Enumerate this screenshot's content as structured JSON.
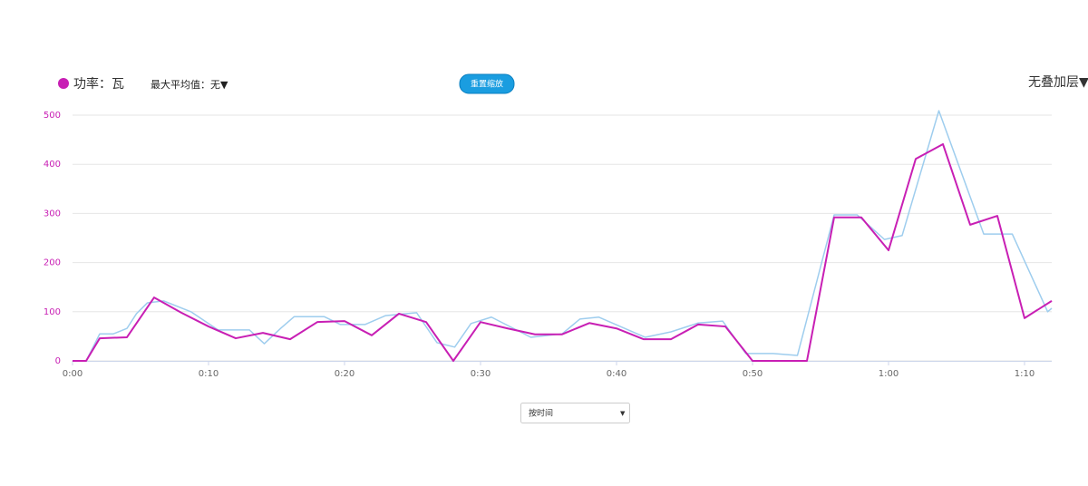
{
  "chart_data": {
    "type": "line",
    "xlim": [
      0,
      72
    ],
    "ylim": [
      0,
      500
    ],
    "yticks": [
      0,
      100,
      200,
      300,
      400,
      500
    ],
    "xticks": [
      {
        "value": 0,
        "label": "0:00"
      },
      {
        "value": 10,
        "label": "0:10"
      },
      {
        "value": 20,
        "label": "0:20"
      },
      {
        "value": 30,
        "label": "0:30"
      },
      {
        "value": 40,
        "label": "0:40"
      },
      {
        "value": 50,
        "label": "0:50"
      },
      {
        "value": 60,
        "label": "1:00"
      },
      {
        "value": 70,
        "label": "1:10"
      }
    ],
    "grid": true,
    "series": [
      {
        "color": "#9ecdee",
        "x": [
          0,
          1,
          2,
          3,
          4,
          4.7,
          5.5,
          6.7,
          8.7,
          10.7,
          13,
          14.1,
          15.3,
          16.3,
          18.5,
          19.7,
          21.5,
          23,
          25.3,
          26.8,
          28.1,
          29.3,
          30.8,
          33.7,
          36,
          37.3,
          38.7,
          42.1,
          44,
          46,
          47.8,
          49.5,
          51.5,
          53.3,
          56,
          57.7,
          59.7,
          61,
          63.7,
          67,
          69.1,
          71.7,
          72
        ],
        "values": [
          0,
          0,
          55,
          55,
          66,
          96,
          118,
          122,
          100,
          63,
          63,
          35,
          66,
          90,
          90,
          74,
          74,
          92,
          98,
          37,
          28,
          76,
          89,
          48,
          55,
          85,
          89,
          48,
          59,
          77,
          81,
          15,
          15,
          11,
          297,
          297,
          247,
          255,
          509,
          258,
          258,
          100,
          107
        ]
      },
      {
        "name": "功率：瓦",
        "color": "#c81fb4",
        "x": [
          0,
          1,
          2,
          4,
          6,
          8,
          10,
          12,
          14,
          16,
          18,
          20,
          22,
          24,
          26,
          28,
          30,
          32,
          34,
          36,
          38,
          40,
          42,
          44,
          46,
          48,
          50,
          52,
          54,
          56,
          58,
          60,
          62,
          64,
          66,
          68,
          70,
          72
        ],
        "values": [
          0,
          0,
          46,
          48,
          129,
          98,
          70,
          46,
          57,
          44,
          79,
          81,
          52,
          96,
          79,
          0,
          79,
          66,
          54,
          54,
          77,
          66,
          44,
          44,
          74,
          70,
          0,
          0,
          0,
          292,
          292,
          225,
          411,
          441,
          277,
          295,
          87,
          122
        ]
      }
    ]
  },
  "controls": {
    "max_average": "最大平均值：无▼",
    "reset_zoom": "重置缩放",
    "overlay": "无叠加层▼",
    "x_mode": "按时间"
  }
}
